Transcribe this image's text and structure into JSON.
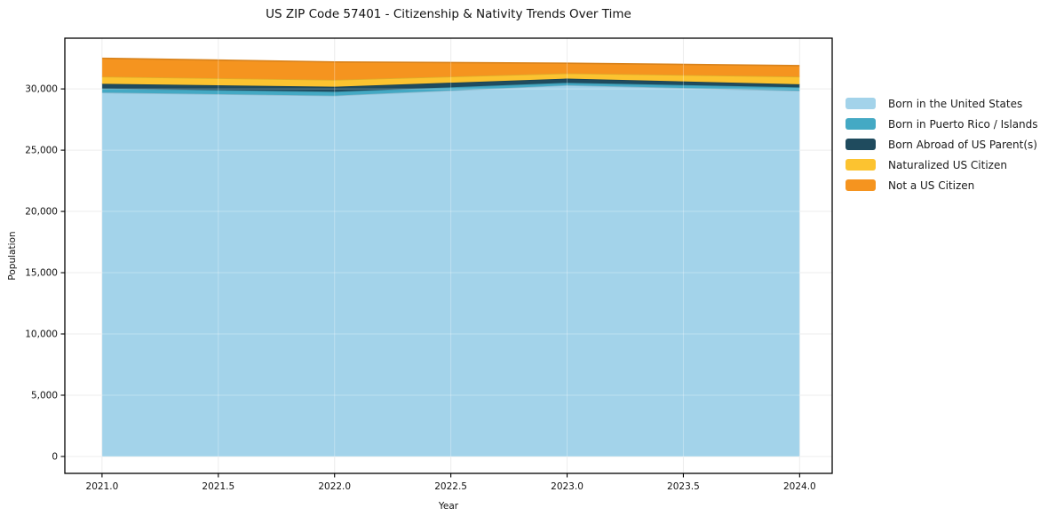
{
  "chart": {
    "title": "US ZIP Code 57401 - Citizenship & Nativity Trends Over Time",
    "xlabel": "Year",
    "ylabel": "Population"
  },
  "chart_data": {
    "type": "area",
    "stacked": true,
    "title": "US ZIP Code 57401 - Citizenship & Nativity Trends Over Time",
    "xlabel": "Year",
    "ylabel": "Population",
    "x": [
      2021,
      2022,
      2023,
      2024
    ],
    "series": [
      {
        "name": "Born in the United States",
        "color": "#A3D3EA",
        "values": [
          29700,
          29450,
          30300,
          29850
        ]
      },
      {
        "name": "Born in Puerto Rico / Islands",
        "color": "#44A9C4",
        "values": [
          330,
          320,
          200,
          280
        ]
      },
      {
        "name": "Born Abroad of US Parent(s)",
        "color": "#1F4B5E",
        "values": [
          390,
          410,
          340,
          250
        ]
      },
      {
        "name": "Naturalized US Citizen",
        "color": "#FCC330",
        "values": [
          580,
          560,
          430,
          620
        ]
      },
      {
        "name": "Not a US Citizen",
        "color": "#F5941F",
        "values": [
          1500,
          1460,
          830,
          900
        ]
      }
    ],
    "totals": [
      32500,
      32200,
      32100,
      31900
    ],
    "xlim": [
      2020.84,
      2024.14
    ],
    "ylim": [
      -1380,
      34140
    ],
    "x_tick_values": [
      2021.0,
      2021.5,
      2022.0,
      2022.5,
      2023.0,
      2023.5,
      2024.0
    ],
    "x_tick_labels": [
      "2021.0",
      "2021.5",
      "2022.0",
      "2022.5",
      "2023.0",
      "2023.5",
      "2024.0"
    ],
    "y_tick_values": [
      0,
      5000,
      10000,
      15000,
      20000,
      25000,
      30000
    ],
    "y_tick_labels": [
      "0",
      "5,000",
      "10,000",
      "15,000",
      "20,000",
      "25,000",
      "30,000"
    ],
    "grid": true,
    "legend_position": "right-outside"
  },
  "colors": {
    "background": "#ffffff",
    "grid": "#e7e7e7",
    "spine": "#000000",
    "text": "#111111"
  }
}
